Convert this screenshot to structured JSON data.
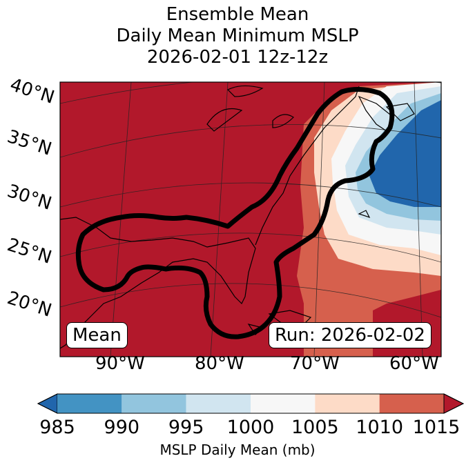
{
  "title": {
    "line1": "Ensemble Mean",
    "line2": "Daily Mean Minimum MSLP",
    "line3": "2026-02-01 12z-12z"
  },
  "map": {
    "projection": "lambert-conformal",
    "lat_labels": [
      "40°N",
      "35°N",
      "30°N",
      "25°N",
      "20°N"
    ],
    "lon_labels": [
      "90°W",
      "80°W",
      "70°W",
      "60°W"
    ],
    "mean_label": "Mean",
    "run_label": "Run: 2026-02-02",
    "field": "MSLP daily mean minimum",
    "low_center_approx": {
      "lat": 34,
      "lon": -61
    },
    "contour_color": "#000000"
  },
  "colorbar": {
    "ticks": [
      "985",
      "990",
      "995",
      "1000",
      "1005",
      "1010",
      "1015"
    ],
    "colors": [
      "#2166ac",
      "#4393c3",
      "#92c5de",
      "#d1e5f0",
      "#f7f7f7",
      "#fddbc7",
      "#d6604d",
      "#b2182b"
    ],
    "extend": "both",
    "label": "MSLP Daily Mean (mb)"
  }
}
